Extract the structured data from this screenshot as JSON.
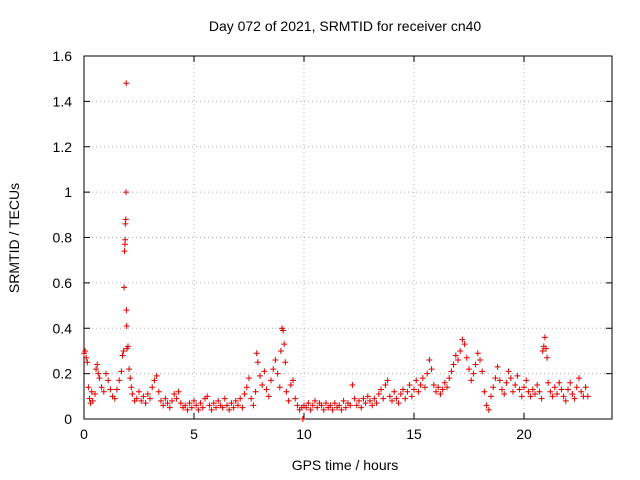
{
  "chart_data": {
    "type": "scatter",
    "title": "Day 072 of 2021, SRMTID for receiver cn40",
    "xlabel": "GPS time / hours",
    "ylabel": "SRMTID / TECUs",
    "xlim": [
      0,
      24
    ],
    "ylim": [
      0,
      1.6
    ],
    "xticks": [
      0,
      5,
      10,
      15,
      20
    ],
    "xtick_labels": [
      "0",
      "5",
      "10",
      "15",
      "20"
    ],
    "yticks": [
      0,
      0.2,
      0.4,
      0.6,
      0.8,
      1.0,
      1.2,
      1.4,
      1.6
    ],
    "ytick_labels": [
      "0",
      "0.2",
      "0.4",
      "0.6",
      "0.8",
      "1",
      "1.2",
      "1.4",
      "1.6"
    ],
    "grid": true,
    "marker": "+",
    "color": "#dd0000",
    "series": [
      {
        "name": "SRMTID",
        "points": [
          [
            0.0,
            0.29
          ],
          [
            0.05,
            0.3
          ],
          [
            0.1,
            0.27
          ],
          [
            0.15,
            0.25
          ],
          [
            0.2,
            0.14
          ],
          [
            0.25,
            0.09
          ],
          [
            0.3,
            0.07
          ],
          [
            0.35,
            0.12
          ],
          [
            0.4,
            0.08
          ],
          [
            0.5,
            0.11
          ],
          [
            0.55,
            0.22
          ],
          [
            0.6,
            0.24
          ],
          [
            0.65,
            0.2
          ],
          [
            0.7,
            0.18
          ],
          [
            0.8,
            0.14
          ],
          [
            0.9,
            0.12
          ],
          [
            1.0,
            0.2
          ],
          [
            1.1,
            0.17
          ],
          [
            1.2,
            0.13
          ],
          [
            1.3,
            0.1
          ],
          [
            1.4,
            0.09
          ],
          [
            1.5,
            0.13
          ],
          [
            1.6,
            0.17
          ],
          [
            1.7,
            0.21
          ],
          [
            1.75,
            0.28
          ],
          [
            1.8,
            0.3
          ],
          [
            1.82,
            0.58
          ],
          [
            1.84,
            0.74
          ],
          [
            1.86,
            0.77
          ],
          [
            1.87,
            0.79
          ],
          [
            1.88,
            0.86
          ],
          [
            1.9,
            0.88
          ],
          [
            1.91,
            1.0
          ],
          [
            1.92,
            1.48
          ],
          [
            1.93,
            0.48
          ],
          [
            1.94,
            0.41
          ],
          [
            1.95,
            0.31
          ],
          [
            2.0,
            0.32
          ],
          [
            2.05,
            0.22
          ],
          [
            2.1,
            0.18
          ],
          [
            2.15,
            0.14
          ],
          [
            2.2,
            0.11
          ],
          [
            2.3,
            0.08
          ],
          [
            2.4,
            0.09
          ],
          [
            2.5,
            0.12
          ],
          [
            2.6,
            0.08
          ],
          [
            2.7,
            0.1
          ],
          [
            2.8,
            0.07
          ],
          [
            2.9,
            0.11
          ],
          [
            3.0,
            0.09
          ],
          [
            3.1,
            0.14
          ],
          [
            3.2,
            0.17
          ],
          [
            3.3,
            0.19
          ],
          [
            3.4,
            0.12
          ],
          [
            3.5,
            0.08
          ],
          [
            3.6,
            0.06
          ],
          [
            3.7,
            0.09
          ],
          [
            3.8,
            0.07
          ],
          [
            3.9,
            0.05
          ],
          [
            4.0,
            0.08
          ],
          [
            4.1,
            0.11
          ],
          [
            4.2,
            0.09
          ],
          [
            4.3,
            0.12
          ],
          [
            4.4,
            0.07
          ],
          [
            4.5,
            0.05
          ],
          [
            4.6,
            0.06
          ],
          [
            4.7,
            0.04
          ],
          [
            4.8,
            0.07
          ],
          [
            4.9,
            0.05
          ],
          [
            5.0,
            0.08
          ],
          [
            5.1,
            0.06
          ],
          [
            5.2,
            0.04
          ],
          [
            5.3,
            0.07
          ],
          [
            5.4,
            0.05
          ],
          [
            5.5,
            0.09
          ],
          [
            5.6,
            0.1
          ],
          [
            5.7,
            0.06
          ],
          [
            5.8,
            0.04
          ],
          [
            5.9,
            0.07
          ],
          [
            6.0,
            0.05
          ],
          [
            6.1,
            0.08
          ],
          [
            6.2,
            0.06
          ],
          [
            6.3,
            0.05
          ],
          [
            6.4,
            0.09
          ],
          [
            6.5,
            0.06
          ],
          [
            6.6,
            0.04
          ],
          [
            6.7,
            0.07
          ],
          [
            6.8,
            0.05
          ],
          [
            6.9,
            0.08
          ],
          [
            7.0,
            0.06
          ],
          [
            7.1,
            0.09
          ],
          [
            7.2,
            0.05
          ],
          [
            7.3,
            0.11
          ],
          [
            7.4,
            0.14
          ],
          [
            7.5,
            0.18
          ],
          [
            7.6,
            0.09
          ],
          [
            7.7,
            0.06
          ],
          [
            7.8,
            0.12
          ],
          [
            7.85,
            0.29
          ],
          [
            7.9,
            0.25
          ],
          [
            8.0,
            0.19
          ],
          [
            8.1,
            0.15
          ],
          [
            8.2,
            0.21
          ],
          [
            8.3,
            0.13
          ],
          [
            8.4,
            0.1
          ],
          [
            8.5,
            0.17
          ],
          [
            8.6,
            0.22
          ],
          [
            8.7,
            0.26
          ],
          [
            8.8,
            0.2
          ],
          [
            8.9,
            0.14
          ],
          [
            8.95,
            0.3
          ],
          [
            9.0,
            0.4
          ],
          [
            9.05,
            0.39
          ],
          [
            9.1,
            0.33
          ],
          [
            9.15,
            0.25
          ],
          [
            9.2,
            0.12
          ],
          [
            9.3,
            0.08
          ],
          [
            9.4,
            0.15
          ],
          [
            9.5,
            0.17
          ],
          [
            9.6,
            0.09
          ],
          [
            9.7,
            0.06
          ],
          [
            9.8,
            0.04
          ],
          [
            9.9,
            0.05
          ],
          [
            9.95,
            0.0
          ],
          [
            10.0,
            0.06
          ],
          [
            10.1,
            0.05
          ],
          [
            10.2,
            0.07
          ],
          [
            10.3,
            0.04
          ],
          [
            10.4,
            0.06
          ],
          [
            10.5,
            0.08
          ],
          [
            10.6,
            0.05
          ],
          [
            10.7,
            0.07
          ],
          [
            10.8,
            0.06
          ],
          [
            10.9,
            0.04
          ],
          [
            11.0,
            0.07
          ],
          [
            11.1,
            0.05
          ],
          [
            11.2,
            0.06
          ],
          [
            11.3,
            0.04
          ],
          [
            11.4,
            0.07
          ],
          [
            11.5,
            0.05
          ],
          [
            11.6,
            0.06
          ],
          [
            11.7,
            0.04
          ],
          [
            11.8,
            0.08
          ],
          [
            11.9,
            0.05
          ],
          [
            12.0,
            0.07
          ],
          [
            12.1,
            0.06
          ],
          [
            12.2,
            0.15
          ],
          [
            12.3,
            0.09
          ],
          [
            12.4,
            0.06
          ],
          [
            12.5,
            0.08
          ],
          [
            12.6,
            0.05
          ],
          [
            12.7,
            0.09
          ],
          [
            12.8,
            0.07
          ],
          [
            12.9,
            0.1
          ],
          [
            13.0,
            0.08
          ],
          [
            13.1,
            0.06
          ],
          [
            13.2,
            0.09
          ],
          [
            13.3,
            0.07
          ],
          [
            13.4,
            0.11
          ],
          [
            13.5,
            0.13
          ],
          [
            13.6,
            0.09
          ],
          [
            13.7,
            0.15
          ],
          [
            13.8,
            0.17
          ],
          [
            13.9,
            0.1
          ],
          [
            14.0,
            0.08
          ],
          [
            14.1,
            0.12
          ],
          [
            14.2,
            0.09
          ],
          [
            14.3,
            0.07
          ],
          [
            14.4,
            0.11
          ],
          [
            14.5,
            0.13
          ],
          [
            14.6,
            0.09
          ],
          [
            14.7,
            0.12
          ],
          [
            14.8,
            0.15
          ],
          [
            14.9,
            0.1
          ],
          [
            15.0,
            0.13
          ],
          [
            15.1,
            0.17
          ],
          [
            15.2,
            0.12
          ],
          [
            15.3,
            0.15
          ],
          [
            15.4,
            0.18
          ],
          [
            15.5,
            0.14
          ],
          [
            15.6,
            0.2
          ],
          [
            15.7,
            0.26
          ],
          [
            15.8,
            0.22
          ],
          [
            15.9,
            0.15
          ],
          [
            16.0,
            0.12
          ],
          [
            16.1,
            0.14
          ],
          [
            16.2,
            0.11
          ],
          [
            16.3,
            0.13
          ],
          [
            16.4,
            0.16
          ],
          [
            16.5,
            0.14
          ],
          [
            16.6,
            0.18
          ],
          [
            16.7,
            0.21
          ],
          [
            16.8,
            0.24
          ],
          [
            16.9,
            0.28
          ],
          [
            17.0,
            0.26
          ],
          [
            17.1,
            0.3
          ],
          [
            17.2,
            0.35
          ],
          [
            17.3,
            0.33
          ],
          [
            17.4,
            0.27
          ],
          [
            17.5,
            0.22
          ],
          [
            17.6,
            0.17
          ],
          [
            17.7,
            0.2
          ],
          [
            17.8,
            0.24
          ],
          [
            17.9,
            0.29
          ],
          [
            18.0,
            0.26
          ],
          [
            18.1,
            0.21
          ],
          [
            18.2,
            0.12
          ],
          [
            18.3,
            0.06
          ],
          [
            18.4,
            0.04
          ],
          [
            18.5,
            0.1
          ],
          [
            18.6,
            0.14
          ],
          [
            18.7,
            0.18
          ],
          [
            18.8,
            0.23
          ],
          [
            18.9,
            0.17
          ],
          [
            19.0,
            0.13
          ],
          [
            19.1,
            0.11
          ],
          [
            19.2,
            0.16
          ],
          [
            19.3,
            0.21
          ],
          [
            19.4,
            0.18
          ],
          [
            19.5,
            0.12
          ],
          [
            19.6,
            0.15
          ],
          [
            19.7,
            0.19
          ],
          [
            19.8,
            0.13
          ],
          [
            19.9,
            0.1
          ],
          [
            20.0,
            0.14
          ],
          [
            20.1,
            0.17
          ],
          [
            20.2,
            0.12
          ],
          [
            20.3,
            0.1
          ],
          [
            20.4,
            0.13
          ],
          [
            20.5,
            0.11
          ],
          [
            20.6,
            0.15
          ],
          [
            20.7,
            0.12
          ],
          [
            20.8,
            0.09
          ],
          [
            20.85,
            0.3
          ],
          [
            20.9,
            0.32
          ],
          [
            20.95,
            0.36
          ],
          [
            21.0,
            0.31
          ],
          [
            21.05,
            0.27
          ],
          [
            21.1,
            0.16
          ],
          [
            21.2,
            0.12
          ],
          [
            21.3,
            0.1
          ],
          [
            21.4,
            0.14
          ],
          [
            21.5,
            0.11
          ],
          [
            21.6,
            0.16
          ],
          [
            21.7,
            0.13
          ],
          [
            21.8,
            0.1
          ],
          [
            21.9,
            0.08
          ],
          [
            22.0,
            0.13
          ],
          [
            22.1,
            0.16
          ],
          [
            22.2,
            0.11
          ],
          [
            22.3,
            0.09
          ],
          [
            22.4,
            0.14
          ],
          [
            22.5,
            0.18
          ],
          [
            22.6,
            0.12
          ],
          [
            22.7,
            0.1
          ],
          [
            22.8,
            0.14
          ],
          [
            22.9,
            0.1
          ]
        ]
      }
    ]
  }
}
